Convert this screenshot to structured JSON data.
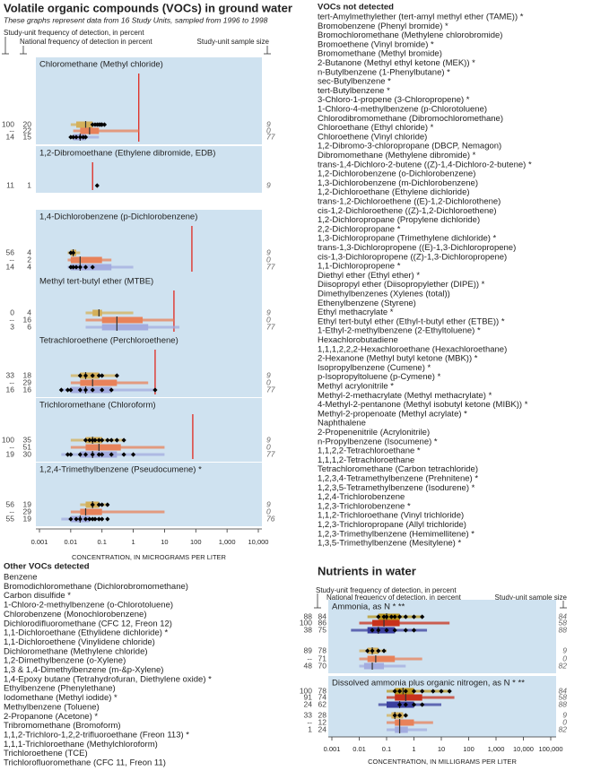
{
  "chart_data": [
    {
      "type": "boxplot",
      "title": "Volatile organic compounds (VOCs) in ground water",
      "subtitle": "These graphs represent data from 16 Study Units, sampled from 1996 to 1998",
      "header_labels": {
        "study_unit_frequency": "Study-unit frequency of detection, in percent",
        "national_frequency": "National frequency of detection in percent",
        "sample_size": "Study-unit sample size"
      },
      "xlabel": "CONCENTRATION, IN MICROGRAMS PER LITER",
      "log_x": true,
      "xlim": [
        0.001,
        10000
      ],
      "xticks": [
        0.001,
        0.01,
        0.1,
        1,
        10,
        100,
        {
          "value": 1000,
          "label": "1,000"
        },
        {
          "value": 10000,
          "label": "10,000"
        }
      ],
      "panel_color": "#cfe2f0",
      "criterion_color": "#e0281e",
      "point_color": "#000000",
      "panels": [
        {
          "title": "Chloromethane (Methyl chloride)",
          "criterion": 1.5,
          "rows": [
            {
              "labels": [
                "100",
                "20",
                "9"
              ],
              "color": "#d4b05a",
              "box": [
                0.01,
                0.015,
                0.03,
                0.05,
                0.12
              ],
              "points": [
                0.05,
                0.06,
                0.07,
                0.08,
                0.09,
                0.1,
                0.12
              ]
            },
            {
              "labels": [
                "--",
                "22",
                "0"
              ],
              "color": "#e8825a",
              "box": [
                0.012,
                0.02,
                0.04,
                0.08,
                1.5
              ]
            },
            {
              "labels": [
                "14",
                "15",
                "77"
              ],
              "color": "#a3acdf",
              "box": [
                0.01,
                0.012,
                0.02,
                0.03,
                0.08
              ],
              "points": [
                0.01,
                0.012,
                0.015,
                0.02,
                0.025,
                0.03
              ]
            }
          ]
        },
        {
          "title": "1,2-Dibromoethane (Ethylene dibromide, EDB)",
          "criterion": 0.05,
          "rows": [
            {
              "labels": [
                "11",
                "1",
                "9"
              ],
              "points": [
                0.07
              ]
            }
          ]
        },
        {
          "title": "1,4-Dichlorobenzene (p-Dichlorobenzene)",
          "criterion": 75,
          "rows": [
            {
              "labels": [
                "56",
                "4",
                "9"
              ],
              "color": "#d4b05a",
              "box": [
                0.008,
                0.01,
                0.012,
                0.015,
                0.02
              ],
              "points": [
                0.01,
                0.012
              ]
            },
            {
              "labels": [
                "--",
                "2",
                "0"
              ],
              "color": "#e8825a",
              "box": [
                0.008,
                0.01,
                0.02,
                0.1,
                0.2
              ]
            },
            {
              "labels": [
                "14",
                "4",
                "77"
              ],
              "color": "#a3acdf",
              "box": [
                0.008,
                0.01,
                0.02,
                0.2,
                1
              ],
              "points": [
                0.01,
                0.012,
                0.015,
                0.02,
                0.03,
                0.05
              ]
            }
          ]
        },
        {
          "title": "Methyl tert-butyl ether (MTBE)",
          "criterion": 20,
          "rows": [
            {
              "labels": [
                "0",
                "4",
                "9"
              ],
              "color": "#d4b05a",
              "box": [
                0.03,
                0.05,
                0.08,
                0.1,
                1
              ]
            },
            {
              "labels": [
                "--",
                "16",
                "0"
              ],
              "color": "#e8825a",
              "box": [
                0.03,
                0.1,
                0.3,
                2,
                20
              ]
            },
            {
              "labels": [
                "3",
                "6",
                "77"
              ],
              "color": "#a3acdf",
              "box": [
                0.03,
                0.1,
                0.3,
                3,
                30
              ]
            }
          ]
        },
        {
          "title": "Tetrachloroethene (Perchloroethene)",
          "criterion": 5,
          "rows": [
            {
              "labels": [
                "33",
                "18",
                "9"
              ],
              "color": "#d4b05a",
              "box": [
                0.01,
                0.02,
                0.03,
                0.08,
                0.3
              ],
              "points": [
                0.02,
                0.03,
                0.05,
                0.08,
                0.1,
                0.3
              ]
            },
            {
              "labels": [
                "--",
                "29",
                "0"
              ],
              "color": "#e8825a",
              "box": [
                0.01,
                0.02,
                0.05,
                0.3,
                3
              ]
            },
            {
              "labels": [
                "16",
                "16",
                "77"
              ],
              "color": "#a3acdf",
              "box": [
                0.005,
                0.01,
                0.03,
                0.2,
                5
              ],
              "points": [
                0.005,
                0.008,
                0.01,
                0.02,
                0.03,
                0.05,
                0.1,
                0.2,
                5
              ]
            }
          ]
        },
        {
          "title": "Trichloromethane (Chloroform)",
          "criterion": 80,
          "rows": [
            {
              "labels": [
                "100",
                "35",
                "9"
              ],
              "color": "#d4b05a",
              "box": [
                0.01,
                0.03,
                0.05,
                0.1,
                0.5
              ],
              "points": [
                0.03,
                0.04,
                0.05,
                0.06,
                0.08,
                0.1,
                0.15,
                0.2,
                0.3,
                0.5
              ]
            },
            {
              "labels": [
                "--",
                "51",
                "0"
              ],
              "color": "#e8825a",
              "box": [
                0.01,
                0.03,
                0.08,
                0.4,
                10
              ]
            },
            {
              "labels": [
                "19",
                "30",
                "77"
              ],
              "color": "#a3acdf",
              "box": [
                0.005,
                0.02,
                0.05,
                0.3,
                10
              ],
              "points": [
                0.008,
                0.01,
                0.02,
                0.03,
                0.05,
                0.08,
                0.1,
                0.2,
                0.5,
                1
              ]
            }
          ]
        },
        {
          "title": "1,2,4-Trimethylbenzene (Pseudocumene) *",
          "rows": [
            {
              "labels": [
                "56",
                "19",
                "9"
              ],
              "color": "#d4b05a",
              "box": [
                0.02,
                0.03,
                0.05,
                0.08,
                0.15
              ],
              "points": [
                0.05,
                0.08,
                0.1,
                0.15
              ]
            },
            {
              "labels": [
                "--",
                "29",
                "0"
              ],
              "color": "#e8825a",
              "box": [
                0.01,
                0.02,
                0.03,
                0.1,
                10
              ]
            },
            {
              "labels": [
                "55",
                "19",
                "76"
              ],
              "color": "#a3acdf",
              "box": [
                0.005,
                0.01,
                0.02,
                0.04,
                0.1
              ],
              "points": [
                0.01,
                0.015,
                0.02,
                0.03,
                0.04,
                0.05,
                0.06,
                0.08,
                0.1,
                0.15
              ]
            }
          ]
        }
      ]
    },
    {
      "type": "boxplot",
      "title": "Nutrients in water",
      "header_labels": {
        "study_unit_frequency": "Study-unit frequency of detection, in percent",
        "national_frequency": "National frequency of detection, in percent",
        "sample_size": "Study-unit sample size"
      },
      "xlabel": "CONCENTRATION, IN MILLIGRAMS PER LITER",
      "log_x": true,
      "xlim": [
        0.001,
        100000
      ],
      "xticks": [
        0.001,
        0.01,
        0.1,
        1,
        10,
        100,
        {
          "value": 1000,
          "label": "1,000"
        },
        {
          "value": 10000,
          "label": "10,000"
        },
        {
          "value": 100000,
          "label": "100,000"
        }
      ],
      "panel_color": "#cfe2f0",
      "point_color": "#000000",
      "panels": [
        {
          "title": "Ammonia, as N * **",
          "rows": [
            {
              "labels": [
                "88",
                "84",
                "84"
              ],
              "color": "#b8961e",
              "box": [
                0.02,
                0.05,
                0.1,
                0.3,
                2
              ],
              "points": [
                0.05,
                0.08,
                0.1,
                0.15,
                0.2,
                0.3,
                0.5,
                1,
                2
              ]
            },
            {
              "labels": [
                "100",
                "86",
                "58"
              ],
              "color": "#c8321c",
              "box": [
                0.01,
                0.03,
                0.08,
                0.3,
                20
              ]
            },
            {
              "labels": [
                "38",
                "75",
                "88"
              ],
              "color": "#3a3f9e",
              "box": [
                0.005,
                0.02,
                0.05,
                0.2,
                3
              ],
              "points": [
                0.03,
                0.05,
                0.1,
                0.2,
                0.5,
                1
              ]
            },
            {
              "labels": [
                "89",
                "78",
                "9"
              ],
              "color": "#d4b05a",
              "box": [
                0.01,
                0.02,
                0.03,
                0.05,
                0.1
              ],
              "points": [
                0.02,
                0.03,
                0.05,
                0.08
              ]
            },
            {
              "labels": [
                "--",
                "71",
                "0"
              ],
              "color": "#e8825a",
              "box": [
                0.01,
                0.02,
                0.04,
                0.2,
                2
              ]
            },
            {
              "labels": [
                "48",
                "70",
                "82"
              ],
              "color": "#a3acdf",
              "box": [
                0.01,
                0.015,
                0.03,
                0.08,
                0.5
              ]
            }
          ]
        },
        {
          "title": "Dissolved ammonia plus organic nitrogen, as N * **",
          "rows": [
            {
              "labels": [
                "100",
                "78",
                "84"
              ],
              "color": "#b8961e",
              "box": [
                0.1,
                0.2,
                0.4,
                1,
                20
              ],
              "points": [
                0.2,
                0.3,
                0.5,
                1,
                2,
                5,
                10,
                20
              ]
            },
            {
              "labels": [
                "91",
                "74",
                "58"
              ],
              "color": "#c8321c",
              "box": [
                0.1,
                0.2,
                0.5,
                2,
                30
              ]
            },
            {
              "labels": [
                "24",
                "62",
                "88"
              ],
              "color": "#3a3f9e",
              "box": [
                0.05,
                0.1,
                0.3,
                1,
                10
              ],
              "points": [
                0.3,
                0.5,
                1,
                2
              ]
            },
            {
              "labels": [
                "33",
                "28",
                "9"
              ],
              "color": "#d4b05a",
              "box": [
                0.1,
                0.15,
                0.2,
                0.4,
                0.6
              ],
              "points": [
                0.2,
                0.3,
                0.5
              ]
            },
            {
              "labels": [
                "--",
                "12",
                "0"
              ],
              "color": "#e8825a",
              "box": [
                0.1,
                0.2,
                0.3,
                1,
                5
              ]
            },
            {
              "labels": [
                "1",
                "24",
                "82"
              ],
              "color": "#a3acdf",
              "box": [
                0.1,
                0.2,
                0.3,
                0.6,
                3
              ]
            }
          ]
        }
      ]
    }
  ],
  "voc_not_detected": {
    "title": "VOCs not detected",
    "items": [
      "tert-Amylmethylether (tert-amyl methyl ether (TAME)) *",
      "Bromobenzene (Phenyl bromide) *",
      "Bromochloromethane (Methylene chlorobromide)",
      "Bromoethene (Vinyl bromide) *",
      "Bromomethane (Methyl bromide)",
      "2-Butanone (Methyl ethyl ketone (MEK)) *",
      "n-Butylbenzene (1-Phenylbutane) *",
      "sec-Butylbenzene *",
      "tert-Butylbenzene *",
      "3-Chloro-1-propene (3-Chloropropene) *",
      "1-Chloro-4-methylbenzene (p-Chlorotoluene)",
      "Chlorodibromomethane (Dibromochloromethane)",
      "Chloroethane (Ethyl chloride) *",
      "Chloroethene (Vinyl chloride)",
      "1,2-Dibromo-3-chloropropane (DBCP, Nemagon)",
      "Dibromomethane (Methylene dibromide) *",
      "trans-1,4-Dichloro-2-butene ((Z)-1,4-Dichloro-2-butene) *",
      "1,2-Dichlorobenzene (o-Dichlorobenzene)",
      "1,3-Dichlorobenzene (m-Dichlorobenzene)",
      "1,2-Dichloroethane (Ethylene dichloride)",
      "trans-1,2-Dichloroethene ((E)-1,2-Dichlorothene)",
      "cis-1,2-Dichloroethene ((Z)-1,2-Dichloroethene)",
      "1,2-Dichloropropane (Propylene dichloride)",
      "2,2-Dichloropropane *",
      "1,3-Dichloropropane (Trimethylene dichloride) *",
      "trans-1,3-Dichloropropene ((E)-1,3-Dichloropropene)",
      "cis-1,3-Dichloropropene ((Z)-1,3-Dichloropropene)",
      "1,1-Dichloropropene *",
      "Diethyl ether (Ethyl ether) *",
      "Diisopropyl ether (Diisopropylether (DIPE)) *",
      "Dimethylbenzenes (Xylenes (total))",
      "Ethenylbenzene (Styrene)",
      "Ethyl methacrylate *",
      "Ethyl tert-butyl ether (Ethyl-t-butyl ether (ETBE)) *",
      "1-Ethyl-2-methylbenzene (2-Ethyltoluene) *",
      "Hexachlorobutadiene",
      "1,1,1,2,2,2-Hexachloroethane (Hexachloroethane)",
      "2-Hexanone (Methyl butyl ketone (MBK)) *",
      "Isopropylbenzene (Cumene) *",
      "p-Isopropyltoluene (p-Cymene) *",
      "Methyl acrylonitrile *",
      "Methyl-2-methacrylate (Methyl methacrylate) *",
      "4-Methyl-2-pentanone (Methyl isobutyl ketone (MIBK)) *",
      "Methyl-2-propenoate (Methyl acrylate) *",
      "Naphthalene",
      "2-Propenenitrile (Acrylonitrile)",
      "n-Propylbenzene (Isocumene) *",
      "1,1,2,2-Tetrachloroethane *",
      "1,1,1,2-Tetrachloroethane",
      "Tetrachloromethane (Carbon tetrachloride)",
      "1,2,3,4-Tetramethylbenzene (Prehnitene) *",
      "1,2,3,5-Tetramethylbenzene (Isodurene) *",
      "1,2,4-Trichlorobenzene",
      "1,2,3-Trichlorobenzene *",
      "1,1,2-Trichloroethane (Vinyl trichloride)",
      "1,2,3-Trichloropropane (Allyl trichloride)",
      "1,2,3-Trimethylbenzene (Hemimellitene) *",
      "1,3,5-Trimethylbenzene (Mesitylene) *"
    ]
  },
  "other_vocs_detected": {
    "title": "Other VOCs detected",
    "items": [
      "Benzene",
      "Bromodichloromethane (Dichlorobromomethane)",
      "Carbon disulfide *",
      "1-Chloro-2-methylbenzene (o-Chlorotoluene)",
      "Chlorobenzene (Monochlorobenzene)",
      "Dichlorodifluoromethane (CFC 12, Freon 12)",
      "1,1-Dichloroethane (Ethylidene dichloride) *",
      "1,1-Dichloroethene (Vinylidene chloride)",
      "Dichloromethane (Methylene chloride)",
      "1,2-Dimethylbenzene (o-Xylene)",
      "1,3 & 1,4-Dimethylbenzene (m-&p-Xylene)",
      "1,4-Epoxy butane (Tetrahydrofuran, Diethylene oxide) *",
      "Ethylbenzene (Phenylethane)",
      "Iodomethane (Methyl iodide) *",
      "Methylbenzene (Toluene)",
      "2-Propanone (Acetone) *",
      "Tribromomethane (Bromoform)",
      "1,1,2-Trichloro-1,2,2-trifluoroethane (Freon 113) *",
      "1,1,1-Trichloroethane (Methylchloroform)",
      "Trichloroethene (TCE)",
      "Trichlorofluoromethane (CFC 11, Freon 11)"
    ]
  }
}
